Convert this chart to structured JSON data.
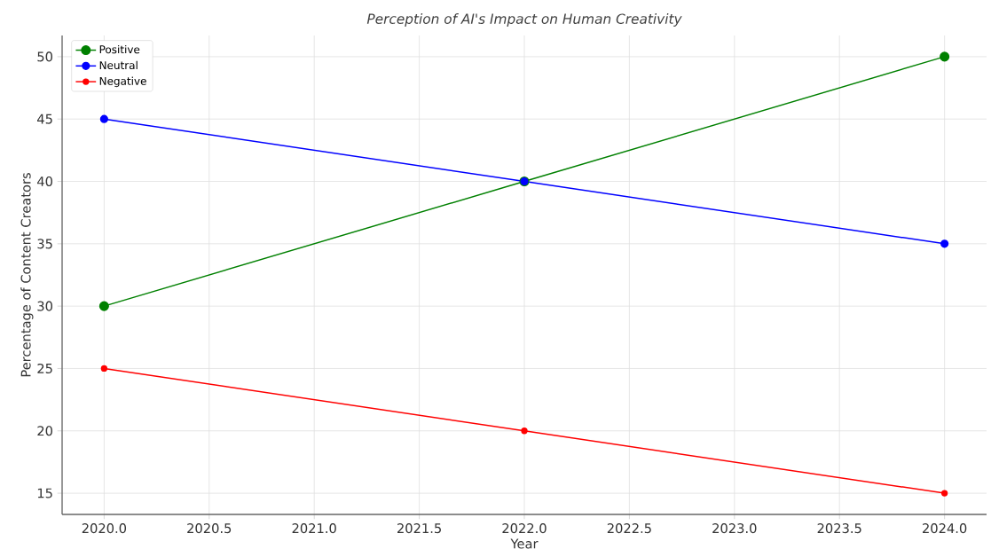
{
  "chart_data": {
    "type": "line",
    "title": "Perception of AI's Impact on Human Creativity",
    "xlabel": "Year",
    "ylabel": "Percentage of Content Creators",
    "x": [
      2020,
      2022,
      2024
    ],
    "series": [
      {
        "name": "Positive",
        "color": "#008000",
        "values": [
          30,
          40,
          50
        ]
      },
      {
        "name": "Neutral",
        "color": "#0000ff",
        "values": [
          45,
          40,
          35
        ]
      },
      {
        "name": "Negative",
        "color": "#ff0000",
        "values": [
          25,
          20,
          15
        ]
      }
    ],
    "xlim": [
      2019.8,
      2024.2
    ],
    "ylim": [
      13.3,
      51.7
    ],
    "xticks": [
      {
        "value": 2020,
        "label": "2020.0"
      },
      {
        "value": 2020.5,
        "label": "2020.5"
      },
      {
        "value": 2021,
        "label": "2021.0"
      },
      {
        "value": 2021.5,
        "label": "2021.5"
      },
      {
        "value": 2022,
        "label": "2022.0"
      },
      {
        "value": 2022.5,
        "label": "2022.5"
      },
      {
        "value": 2023,
        "label": "2023.0"
      },
      {
        "value": 2023.5,
        "label": "2023.5"
      },
      {
        "value": 2024,
        "label": "2024.0"
      }
    ],
    "yticks": [
      15,
      20,
      25,
      30,
      35,
      40,
      45,
      50
    ],
    "grid": true,
    "legend": "top left",
    "marker": "circle",
    "line_style": "solid"
  }
}
